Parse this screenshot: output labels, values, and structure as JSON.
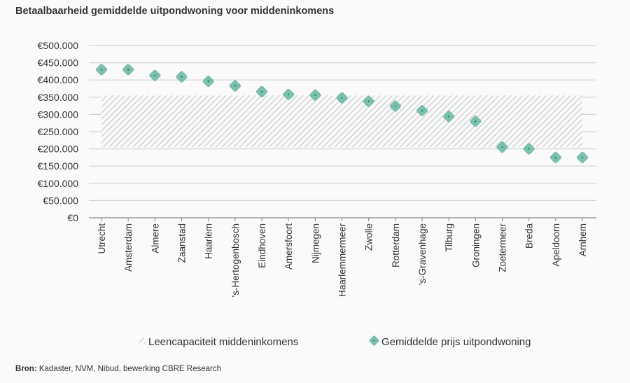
{
  "chart_data": {
    "type": "scatter",
    "title": "Betaalbaarheid gemiddelde uitpondwoning voor middeninkomens",
    "categories": [
      "Utrecht",
      "Amsterdam",
      "Almere",
      "Zaanstad",
      "Haarlem",
      "'s-Hertogenbosch",
      "Eindhoven",
      "Amersfoort",
      "Nijmegen",
      "Haarlemmermeer",
      "Zwolle",
      "Rotterdam",
      "'s-Gravenhage",
      "Tilburg",
      "Groningen",
      "Zoetermeer",
      "Breda",
      "Apeldoorn",
      "Arnhem"
    ],
    "series": [
      {
        "name": "Gemiddelde prijs uitpondwoning",
        "type": "scatter",
        "marker": "diamond",
        "color": "#7bbfad",
        "values": [
          430000,
          430000,
          413000,
          409000,
          396000,
          383000,
          366000,
          358000,
          356000,
          348000,
          338000,
          324000,
          311000,
          294000,
          280000,
          205000,
          200000,
          175000,
          175000
        ]
      },
      {
        "name": "Leencapaciteit middeninkomens",
        "type": "band",
        "pattern": "diagonal-hatch",
        "color": "#c9cccd",
        "range": [
          205000,
          355000
        ]
      }
    ],
    "ylim": [
      0,
      500000
    ],
    "yticks": [
      0,
      50000,
      100000,
      150000,
      200000,
      250000,
      300000,
      350000,
      400000,
      450000,
      500000
    ],
    "ytick_labels": [
      "€0",
      "€50.000",
      "€100.000",
      "€150.000",
      "€200.000",
      "€250.000",
      "€300.000",
      "€350.000",
      "€400.000",
      "€450.000",
      "€500.000"
    ],
    "grid": true,
    "legend_position": "bottom"
  },
  "source": {
    "label": "Bron:",
    "text": " Kadaster, NVM, Nibud, bewerking CBRE Research"
  }
}
